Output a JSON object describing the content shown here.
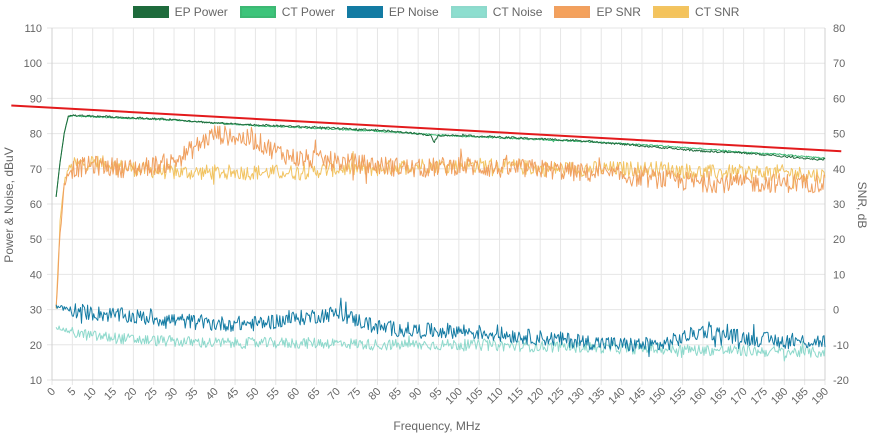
{
  "chart_data": {
    "type": "line",
    "title": "",
    "xlabel": "Frequency, MHz",
    "ylabel_left": "Power & Noise, dBuV",
    "ylabel_right": "SNR, dB",
    "xlim": [
      0,
      190
    ],
    "ylim_left": [
      10,
      110
    ],
    "ylim_right": [
      -20,
      80
    ],
    "x_ticks": [
      "0",
      "5",
      "10",
      "15",
      "20",
      "25",
      "30",
      "35",
      "40",
      "45",
      "50",
      "55",
      "60",
      "65",
      "70",
      "75",
      "80",
      "85",
      "90",
      "95",
      "100",
      "105",
      "110",
      "115",
      "120",
      "125",
      "130",
      "135",
      "140",
      "145",
      "150",
      "155",
      "160",
      "165",
      "170",
      "175",
      "180",
      "185",
      "190"
    ],
    "y_left_ticks": [
      "10",
      "20",
      "30",
      "40",
      "50",
      "60",
      "70",
      "80",
      "90",
      "100",
      "110"
    ],
    "y_right_ticks": [
      "-20",
      "-10",
      "0",
      "10",
      "20",
      "30",
      "40",
      "50",
      "60",
      "70",
      "80"
    ],
    "legend_position": "top",
    "grid": true,
    "series": [
      {
        "name": "EP Power",
        "axis": "left",
        "color": "#1e6b3c",
        "fill": "#1e6b3c",
        "x": [
          1,
          2,
          3,
          4,
          5,
          10,
          20,
          30,
          40,
          50,
          60,
          70,
          80,
          90,
          93,
          94,
          95,
          100,
          110,
          120,
          130,
          140,
          150,
          160,
          170,
          180,
          190
        ],
        "values": [
          62,
          72,
          80,
          85,
          85.2,
          85,
          84.5,
          84,
          83,
          82.5,
          82,
          81.5,
          81,
          80,
          79.5,
          77.5,
          79.5,
          79.5,
          79,
          78.5,
          78,
          77,
          76,
          75,
          74.5,
          73.5,
          72.5
        ]
      },
      {
        "name": "CT Power",
        "axis": "left",
        "color": "#3db873",
        "fill": "#3dc47a",
        "x": [
          1,
          2,
          3,
          4,
          5,
          10,
          20,
          30,
          40,
          50,
          60,
          70,
          80,
          90,
          100,
          110,
          120,
          130,
          140,
          150,
          160,
          170,
          180,
          190
        ],
        "values": [
          62,
          72,
          80,
          84.8,
          85,
          84.8,
          84.3,
          83.8,
          83,
          82.3,
          81.8,
          81.2,
          80.7,
          80,
          79.3,
          78.8,
          78.3,
          77.8,
          77.2,
          76.5,
          75.6,
          74.7,
          74,
          73
        ]
      },
      {
        "name": "EP Noise",
        "axis": "left",
        "color": "#137ba3",
        "fill": "#137ba3",
        "x": [
          1,
          5,
          10,
          20,
          30,
          40,
          50,
          60,
          70,
          80,
          90,
          100,
          110,
          120,
          130,
          140,
          150,
          160,
          170,
          180,
          190
        ],
        "values": [
          31,
          30,
          29,
          28,
          27,
          26,
          26,
          27.5,
          29,
          25,
          24,
          24,
          23,
          22,
          21,
          20,
          20,
          24,
          22,
          21,
          21
        ]
      },
      {
        "name": "CT Noise",
        "axis": "left",
        "color": "#8ed9cc",
        "fill": "#8ddecf",
        "x": [
          1,
          5,
          10,
          20,
          30,
          40,
          50,
          60,
          70,
          80,
          90,
          100,
          110,
          120,
          130,
          140,
          150,
          160,
          170,
          180,
          190
        ],
        "values": [
          25,
          23.5,
          22.5,
          21.5,
          21,
          20.5,
          20.5,
          20.5,
          20.5,
          20,
          20,
          20,
          19.8,
          19.5,
          19.3,
          19,
          18.8,
          18.5,
          18.3,
          18,
          17.8
        ]
      },
      {
        "name": "EP SNR",
        "axis": "right",
        "color": "#f0a060",
        "fill": "#f4a15c",
        "x": [
          1,
          2,
          3,
          4,
          5,
          10,
          20,
          30,
          35,
          40,
          45,
          50,
          55,
          60,
          70,
          80,
          90,
          100,
          110,
          120,
          130,
          140,
          150,
          160,
          170,
          180,
          190
        ],
        "values": [
          0,
          22,
          35,
          39,
          40,
          41,
          40,
          42,
          46,
          50,
          49,
          48,
          45,
          43,
          42,
          41,
          40,
          41,
          40,
          40,
          39,
          38,
          37,
          36,
          36,
          36,
          36
        ]
      },
      {
        "name": "CT SNR",
        "axis": "right",
        "color": "#f2c462",
        "fill": "#f4c35b",
        "x": [
          1,
          2,
          3,
          4,
          5,
          10,
          20,
          30,
          40,
          50,
          60,
          70,
          80,
          90,
          100,
          110,
          120,
          130,
          140,
          150,
          160,
          170,
          180,
          190
        ],
        "values": [
          0,
          25,
          36,
          40,
          41,
          42,
          40,
          39,
          39,
          39,
          39,
          40,
          40,
          41,
          41,
          41,
          40,
          40,
          40,
          40,
          39,
          39,
          39,
          38
        ]
      }
    ],
    "annotations": [
      {
        "type": "trend_line",
        "color": "#e31a1c",
        "x": [
          -10,
          194
        ],
        "values": [
          88,
          75
        ]
      }
    ]
  }
}
